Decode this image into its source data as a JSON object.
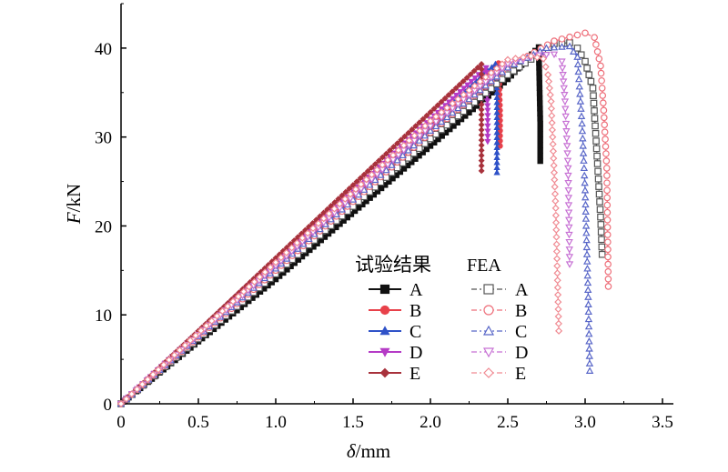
{
  "chart_data": {
    "type": "line",
    "xlabel_symbol": "δ",
    "xlabel_unit": "/mm",
    "ylabel_symbol": "F",
    "ylabel_unit": "/kN",
    "xlim": [
      0,
      3.5
    ],
    "ylim": [
      0,
      45
    ],
    "xticks": [
      "0",
      "0.5",
      "1.0",
      "1.5",
      "2.0",
      "2.5",
      "3.0",
      "3.5"
    ],
    "yticks": [
      "0",
      "10",
      "20",
      "30",
      "40"
    ],
    "legend": {
      "placement": "lower-right",
      "group_titles": [
        "试验结果",
        "FEA"
      ],
      "labels": [
        "A",
        "B",
        "C",
        "D",
        "E"
      ]
    },
    "series": [
      {
        "name": "A",
        "group": "试验结果",
        "color": "#111111",
        "marker": "square",
        "filled": true,
        "dash": "solid",
        "x": [
          0,
          1.0,
          2.0,
          2.5,
          2.7,
          2.71,
          2.71
        ],
        "y": [
          0,
          14.0,
          29.0,
          36.5,
          40.1,
          31.5,
          27.3
        ]
      },
      {
        "name": "B",
        "group": "试验结果",
        "color": "#e8414a",
        "marker": "circle",
        "filled": true,
        "dash": "solid",
        "x": [
          0,
          1.0,
          2.0,
          2.44,
          2.45,
          2.45
        ],
        "y": [
          0,
          15.5,
          31.0,
          38.3,
          33.0,
          29.0
        ]
      },
      {
        "name": "C",
        "group": "试验结果",
        "color": "#2f52c8",
        "marker": "triangle-up",
        "filled": true,
        "dash": "solid",
        "x": [
          0,
          1.0,
          2.0,
          2.42,
          2.43,
          2.43
        ],
        "y": [
          0,
          15.8,
          31.7,
          38.2,
          35.0,
          26.0
        ]
      },
      {
        "name": "D",
        "group": "试验结果",
        "color": "#b53bc6",
        "marker": "triangle-down",
        "filled": true,
        "dash": "solid",
        "x": [
          0,
          1.0,
          2.0,
          2.36,
          2.37,
          2.37
        ],
        "y": [
          0,
          16.0,
          32.0,
          37.8,
          33.0,
          29.5
        ]
      },
      {
        "name": "E",
        "group": "试验结果",
        "color": "#a8323c",
        "marker": "diamond",
        "filled": true,
        "dash": "solid",
        "x": [
          0,
          1.0,
          2.0,
          2.33,
          2.33,
          2.33
        ],
        "y": [
          0,
          16.4,
          32.8,
          38.2,
          30.8,
          26.2
        ]
      },
      {
        "name": "A",
        "group": "FEA",
        "color": "#555555",
        "marker": "square",
        "filled": false,
        "dash": "dashdot",
        "x": [
          0,
          1.0,
          2.0,
          2.5,
          2.8,
          2.9,
          2.95,
          3.0,
          3.05,
          3.08,
          3.1,
          3.11
        ],
        "y": [
          0,
          14.6,
          29.8,
          37.0,
          40.5,
          40.6,
          40.0,
          38.5,
          35.5,
          27.0,
          21.0,
          16.8
        ]
      },
      {
        "name": "B",
        "group": "FEA",
        "color": "#ee6f7a",
        "marker": "circle",
        "filled": false,
        "dash": "dashdot",
        "x": [
          0,
          1.0,
          2.0,
          2.5,
          2.8,
          3.0,
          3.06,
          3.1,
          3.12,
          3.14,
          3.15
        ],
        "y": [
          0,
          15.0,
          30.5,
          37.8,
          40.8,
          41.7,
          41.2,
          38.0,
          33.0,
          26.5,
          13.2
        ]
      },
      {
        "name": "C",
        "group": "FEA",
        "color": "#5866c8",
        "marker": "triangle-up",
        "filled": false,
        "dash": "dashdot",
        "x": [
          0,
          1.0,
          2.0,
          2.5,
          2.75,
          2.9,
          2.95,
          2.98,
          3.0,
          3.02,
          3.03
        ],
        "y": [
          0,
          15.2,
          30.7,
          37.8,
          40.0,
          40.2,
          39.0,
          31.5,
          24.0,
          12.0,
          3.7
        ]
      },
      {
        "name": "D",
        "group": "FEA",
        "color": "#c771d4",
        "marker": "triangle-down",
        "filled": false,
        "dash": "dashdot",
        "x": [
          0,
          1.0,
          2.0,
          2.5,
          2.7,
          2.8,
          2.85,
          2.87,
          2.89,
          2.9
        ],
        "y": [
          0,
          15.5,
          31.2,
          38.2,
          39.2,
          39.3,
          38.5,
          34.0,
          26.5,
          15.7
        ]
      },
      {
        "name": "E",
        "group": "FEA",
        "color": "#f08a92",
        "marker": "diamond",
        "filled": false,
        "dash": "dashdot",
        "x": [
          0,
          1.0,
          2.0,
          2.5,
          2.65,
          2.73,
          2.76,
          2.78,
          2.81,
          2.83
        ],
        "y": [
          0,
          15.9,
          31.8,
          38.7,
          39.1,
          38.8,
          37.0,
          34.0,
          22.0,
          8.2
        ]
      }
    ]
  }
}
